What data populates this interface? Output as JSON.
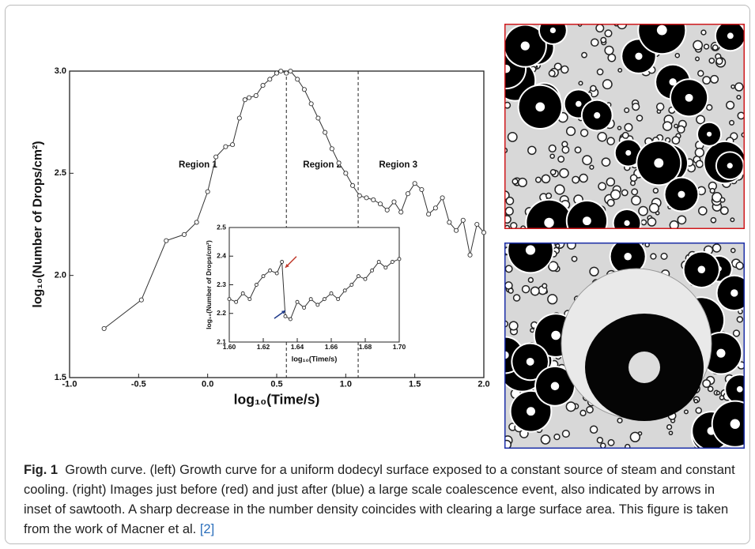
{
  "chart_data": [
    {
      "type": "line",
      "xlabel": "log₁₀(Time/s)",
      "ylabel": "log₁₀(Number of Drops/cm²)",
      "xlim": [
        -1,
        2
      ],
      "ylim": [
        1.5,
        3.0
      ],
      "xticks": [
        {
          "value": -1,
          "label": "-1.0"
        },
        -0.5,
        {
          "value": 0,
          "label": "0.0"
        },
        0.5,
        {
          "value": 1,
          "label": "1.0"
        },
        1.5,
        {
          "value": 2,
          "label": "2.0"
        }
      ],
      "yticks": [
        1.5,
        {
          "value": 2,
          "label": "2.0"
        },
        2.5,
        {
          "value": 3,
          "label": "3.0"
        }
      ],
      "region_boundaries": [
        0.57,
        1.09
      ],
      "annotations": [
        {
          "text": "Region 1",
          "x": -0.07,
          "y": 2.54
        },
        {
          "text": "Region 2",
          "x": 0.83,
          "y": 2.54
        },
        {
          "text": "Region 3",
          "x": 1.38,
          "y": 2.54
        }
      ],
      "series": [
        {
          "color": "#333333",
          "x": [
            -0.75,
            -0.48,
            -0.3,
            -0.17,
            -0.08,
            0.0,
            0.06,
            0.13,
            0.18,
            0.23,
            0.27,
            0.3,
            0.35,
            0.4,
            0.45,
            0.5,
            0.53,
            0.57,
            0.6,
            0.65,
            0.7,
            0.75,
            0.8,
            0.85,
            0.9,
            0.95,
            1.0,
            1.05,
            1.1,
            1.15,
            1.2,
            1.25,
            1.3,
            1.35,
            1.4,
            1.45,
            1.5,
            1.55,
            1.6,
            1.65,
            1.7,
            1.75,
            1.8,
            1.85,
            1.9,
            1.95,
            2.0
          ],
          "values": [
            1.74,
            1.88,
            2.17,
            2.2,
            2.26,
            2.41,
            2.58,
            2.63,
            2.64,
            2.77,
            2.86,
            2.87,
            2.88,
            2.93,
            2.96,
            2.99,
            3.0,
            2.99,
            3.0,
            2.96,
            2.91,
            2.84,
            2.77,
            2.7,
            2.62,
            2.55,
            2.5,
            2.44,
            2.39,
            2.38,
            2.37,
            2.35,
            2.32,
            2.36,
            2.31,
            2.4,
            2.45,
            2.42,
            2.3,
            2.33,
            2.38,
            2.26,
            2.22,
            2.27,
            2.1,
            2.25,
            2.21
          ]
        }
      ]
    },
    {
      "type": "line",
      "xlabel": "log₁₀(Time/s)",
      "ylabel": "log₁₀(Number of Drops/cm²)",
      "xlim": [
        1.6,
        1.7
      ],
      "ylim": [
        2.1,
        2.5
      ],
      "xticks": [
        {
          "value": 1.6,
          "label": "1.60"
        },
        1.62,
        1.64,
        1.66,
        1.68,
        {
          "value": 1.7,
          "label": "1.70"
        }
      ],
      "yticks": [
        2.1,
        2.2,
        2.3,
        2.4,
        2.5
      ],
      "arrows": [
        {
          "x": 1.633,
          "y": 2.36,
          "color": "#c0392b",
          "from": [
            14,
            -14
          ]
        },
        {
          "x": 1.633,
          "y": 2.21,
          "color": "#1f3a8a",
          "from": [
            -14,
            10
          ]
        }
      ],
      "series": [
        {
          "color": "#333333",
          "x": [
            1.6,
            1.604,
            1.608,
            1.612,
            1.616,
            1.62,
            1.624,
            1.628,
            1.631,
            1.633,
            1.636,
            1.64,
            1.644,
            1.648,
            1.652,
            1.656,
            1.66,
            1.664,
            1.668,
            1.672,
            1.676,
            1.68,
            1.684,
            1.688,
            1.692,
            1.696,
            1.7
          ],
          "values": [
            2.25,
            2.24,
            2.27,
            2.25,
            2.3,
            2.33,
            2.35,
            2.34,
            2.38,
            2.19,
            2.18,
            2.24,
            2.22,
            2.25,
            2.23,
            2.25,
            2.27,
            2.25,
            2.28,
            2.3,
            2.33,
            2.32,
            2.35,
            2.38,
            2.36,
            2.38,
            2.39
          ]
        }
      ]
    }
  ],
  "caption": {
    "label": "Fig. 1",
    "text": "Growth curve. (left) Growth curve for a uniform dodecyl surface exposed to a constant source of steam and constant cooling. (right) Images just before (red) and just after (blue) a large scale coalescence event, also indicated by arrows in inset of sawtooth. A sharp decrease in the number density coincides with clearing a large surface area. This figure is taken from the work of Macner et al.",
    "ref": "[2]"
  }
}
